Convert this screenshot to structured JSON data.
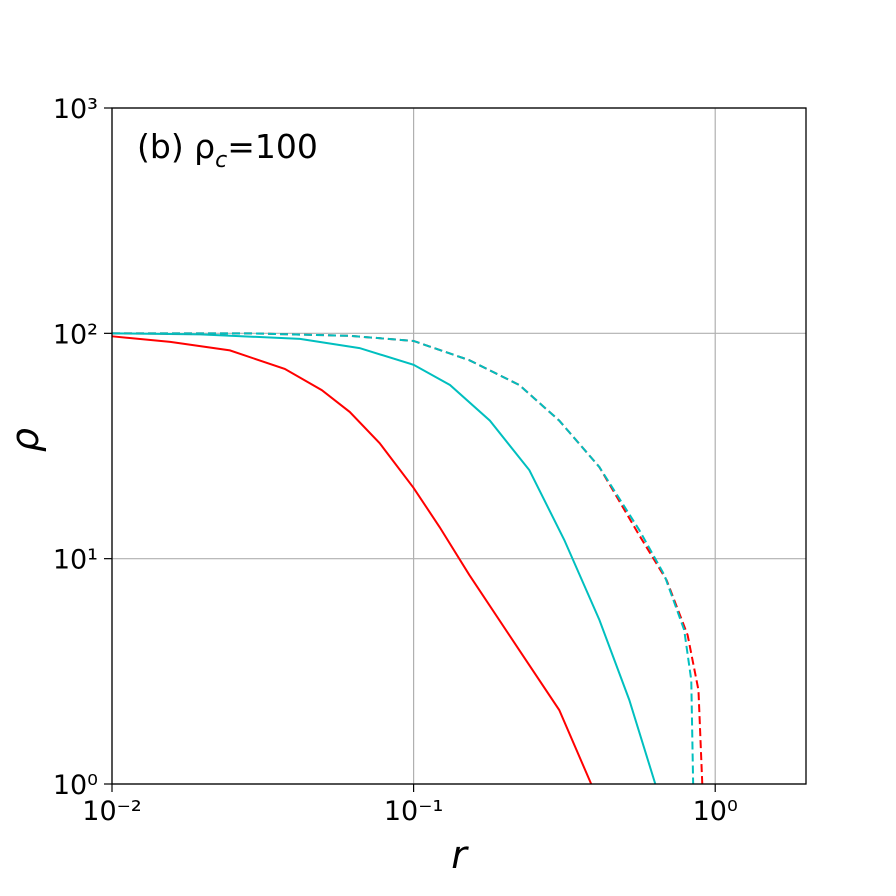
{
  "chart_data": {
    "type": "line",
    "annotation": {
      "prefix": "(b) ρ",
      "subscript": "c",
      "suffix": "=100"
    },
    "x_label": "r",
    "y_label": "ρ",
    "x_log": true,
    "y_log": true,
    "grid": true,
    "xlim": [
      0.01,
      2
    ],
    "ylim": [
      1,
      1000
    ],
    "xticks": [
      {
        "value": 0.01,
        "label": "10⁻²"
      },
      {
        "value": 0.1,
        "label": "10⁻¹"
      },
      {
        "value": 1,
        "label": "10⁰"
      }
    ],
    "yticks": [
      {
        "value": 1,
        "label": "10⁰"
      },
      {
        "value": 10,
        "label": "10¹"
      },
      {
        "value": 100,
        "label": "10²"
      },
      {
        "value": 1000,
        "label": "10³"
      }
    ],
    "series": [
      {
        "color": "#ff0000",
        "linestyle": "solid",
        "x": [
          0.01,
          0.0156,
          0.0246,
          0.0374,
          0.0496,
          0.0614,
          0.0771,
          0.1,
          0.122,
          0.153,
          0.224,
          0.304,
          0.388
        ],
        "values": [
          97,
          91.6,
          84,
          69.5,
          56,
          44.8,
          32.6,
          20.6,
          13.8,
          8.47,
          3.93,
          2.13,
          1.0
        ]
      },
      {
        "color": "#00bfbf",
        "linestyle": "solid",
        "x": [
          0.01,
          0.0196,
          0.042,
          0.0662,
          0.1,
          0.132,
          0.179,
          0.242,
          0.316,
          0.413,
          0.519,
          0.633
        ],
        "values": [
          100,
          99,
          94.5,
          86,
          72.5,
          59,
          41,
          24.7,
          12.1,
          5.35,
          2.36,
          1.0
        ]
      },
      {
        "color": "#ff0000",
        "linestyle": "dashed",
        "x": [
          0.01,
          0.0286,
          0.0614,
          0.1,
          0.153,
          0.224,
          0.304,
          0.413,
          0.56,
          0.69,
          0.81,
          0.88,
          0.906
        ],
        "values": [
          100,
          100,
          97.5,
          92.5,
          76,
          59,
          41,
          25.5,
          12.7,
          8.03,
          4.58,
          2.61,
          1.0
        ]
      },
      {
        "color": "#00bfbf",
        "linestyle": "dashed",
        "x": [
          0.01,
          0.0286,
          0.0614,
          0.1,
          0.153,
          0.224,
          0.304,
          0.413,
          0.56,
          0.678,
          0.789,
          0.833,
          0.845
        ],
        "values": [
          100,
          100,
          97.5,
          92.5,
          76,
          59,
          41,
          25.5,
          13.4,
          8.47,
          4.83,
          2.89,
          1.0
        ]
      }
    ]
  }
}
